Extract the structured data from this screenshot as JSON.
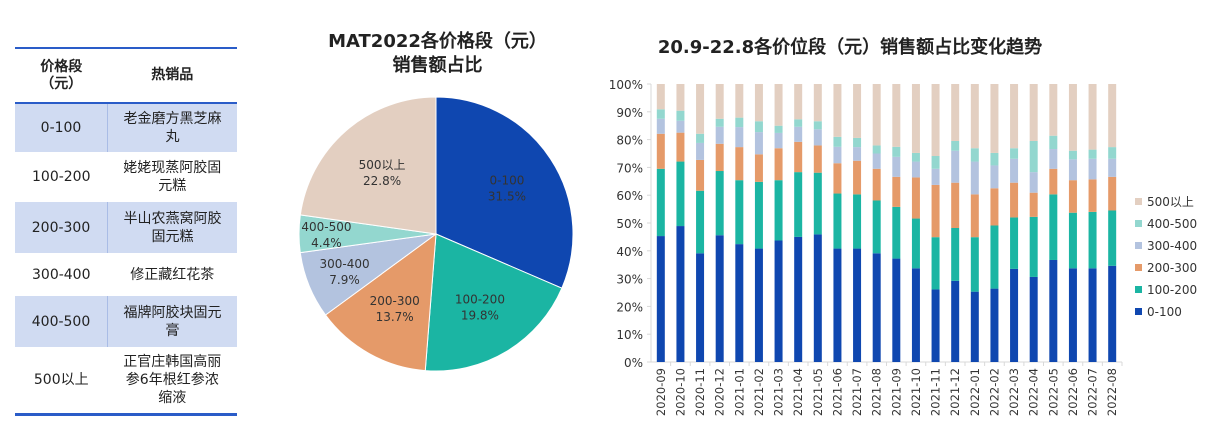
{
  "table": {
    "headers": [
      "价格段\n（元）",
      "热销品"
    ],
    "rows": [
      [
        "0-100",
        "老金磨方黑芝麻丸"
      ],
      [
        "100-200",
        "姥姥现蒸阿胶固元糕"
      ],
      [
        "200-300",
        "半山农燕窝阿胶固元糕"
      ],
      [
        "300-400",
        "修正藏红花茶"
      ],
      [
        "400-500",
        "福牌阿胶块固元膏"
      ],
      [
        "500以上",
        "正官庄韩国高丽参6年根红参浓缩液"
      ]
    ]
  },
  "colors": {
    "0-100": "#0f47b0",
    "100-200": "#1bb5a3",
    "200-300": "#e59a69",
    "300-400": "#b3c3df",
    "400-500": "#93d7cf",
    "500以上": "#e3cfc1",
    "table_rule": "#2a5cc8",
    "table_shade": "#d0dbf2"
  },
  "chart_data": [
    {
      "type": "pie",
      "title": "MAT2022各价格段（元）销售额占比",
      "title_lines": [
        "MAT2022各价格段（元）",
        "销售额占比"
      ],
      "categories": [
        "0-100",
        "100-200",
        "200-300",
        "300-400",
        "400-500",
        "500以上"
      ],
      "values": [
        31.5,
        19.8,
        13.7,
        7.9,
        4.4,
        22.8
      ],
      "labels": [
        "31.5%",
        "19.8%",
        "13.7%",
        "7.9%",
        "4.4%",
        "22.8%"
      ],
      "start": "12 o'clock, clockwise"
    },
    {
      "type": "bar",
      "stacked": true,
      "percent": true,
      "title": "20.9-22.8各价位段（元）销售额占比变化趋势",
      "categories": [
        "2020-09",
        "2020-10",
        "2020-11",
        "2020-12",
        "2021-01",
        "2021-02",
        "2021-03",
        "2021-04",
        "2021-05",
        "2021-06",
        "2021-07",
        "2021-08",
        "2021-09",
        "2021-10",
        "2021-11",
        "2021-12",
        "2022-01",
        "2022-02",
        "2022-03",
        "2022-04",
        "2022-05",
        "2022-06",
        "2022-07",
        "2022-08"
      ],
      "yticks": [
        "0%",
        "10%",
        "20%",
        "30%",
        "40%",
        "50%",
        "60%",
        "70%",
        "80%",
        "90%",
        "100%"
      ],
      "ylim": [
        0,
        100
      ],
      "legend_position": "right",
      "series": [
        {
          "name": "0-100",
          "values": [
            45.3,
            48.9,
            39.1,
            45.6,
            42.4,
            40.8,
            43.7,
            45.0,
            45.9,
            40.8,
            40.8,
            39.1,
            37.2,
            33.7,
            26.1,
            29.2,
            25.3,
            26.4,
            33.5,
            30.6,
            36.7,
            33.7,
            33.7,
            34.6
          ]
        },
        {
          "name": "100-200",
          "values": [
            24.2,
            23.2,
            22.5,
            23.1,
            23.0,
            24.0,
            21.7,
            23.3,
            22.2,
            19.8,
            19.5,
            19.0,
            18.6,
            17.9,
            18.8,
            19.0,
            19.6,
            22.7,
            18.5,
            21.6,
            23.6,
            20.0,
            20.3,
            19.9
          ]
        },
        {
          "name": "200-300",
          "values": [
            12.6,
            10.4,
            11.1,
            9.8,
            11.9,
            9.9,
            11.5,
            10.9,
            9.8,
            10.9,
            12.1,
            11.4,
            10.8,
            14.8,
            18.8,
            16.3,
            15.4,
            13.4,
            12.5,
            8.7,
            9.2,
            11.7,
            11.7,
            12.1
          ]
        },
        {
          "name": "300-400",
          "values": [
            5.4,
            4.3,
            6.1,
            6.1,
            7.2,
            8.0,
            5.5,
            5.4,
            5.8,
            5.9,
            4.9,
            5.5,
            7.2,
            5.7,
            5.8,
            11.5,
            11.8,
            8.2,
            8.6,
            7.4,
            7.1,
            7.5,
            7.4,
            6.5
          ]
        },
        {
          "name": "400-500",
          "values": [
            3.4,
            3.6,
            3.3,
            2.9,
            3.4,
            3.9,
            2.6,
            2.7,
            2.9,
            3.6,
            3.3,
            2.9,
            3.6,
            3.1,
            4.6,
            3.5,
            4.8,
            4.5,
            3.8,
            11.2,
            4.8,
            3.1,
            3.3,
            4.2
          ]
        },
        {
          "name": "500以上",
          "values": [
            9.1,
            9.6,
            17.9,
            12.5,
            12.1,
            13.4,
            15.0,
            12.7,
            13.4,
            19.0,
            19.4,
            22.1,
            22.6,
            24.8,
            25.9,
            20.5,
            23.1,
            24.8,
            23.1,
            20.5,
            18.6,
            24.0,
            23.6,
            22.7
          ]
        }
      ]
    }
  ]
}
